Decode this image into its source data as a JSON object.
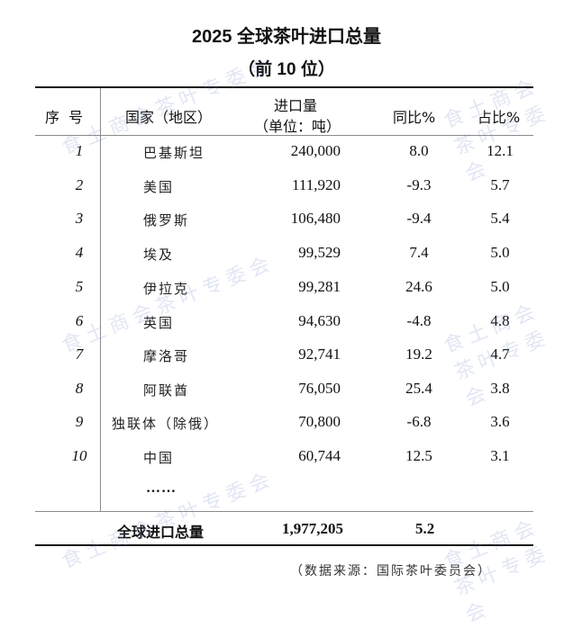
{
  "title": "2025 全球茶叶进口总量",
  "subtitle": "（前 10 位）",
  "table": {
    "headers": {
      "rank": "序  号",
      "country": "国家（地区）",
      "volume_line1": "进口量",
      "volume_line2": "（单位：吨）",
      "yoy": "同比%",
      "share": "占比%"
    },
    "rows": [
      {
        "rank": "1",
        "country": "巴基斯坦",
        "volume": "240,000",
        "yoy": "8.0",
        "share": "12.1"
      },
      {
        "rank": "2",
        "country": "美国",
        "volume": "111,920",
        "yoy": "-9.3",
        "share": "5.7"
      },
      {
        "rank": "3",
        "country": "俄罗斯",
        "volume": "106,480",
        "yoy": "-9.4",
        "share": "5.4"
      },
      {
        "rank": "4",
        "country": "埃及",
        "volume": "99,529",
        "yoy": "7.4",
        "share": "5.0"
      },
      {
        "rank": "5",
        "country": "伊拉克",
        "volume": "99,281",
        "yoy": "24.6",
        "share": "5.0"
      },
      {
        "rank": "6",
        "country": "英国",
        "volume": "94,630",
        "yoy": "-4.8",
        "share": "4.8"
      },
      {
        "rank": "7",
        "country": "摩洛哥",
        "volume": "92,741",
        "yoy": "19.2",
        "share": "4.7"
      },
      {
        "rank": "8",
        "country": "阿联酋",
        "volume": "76,050",
        "yoy": "25.4",
        "share": "3.8"
      },
      {
        "rank": "9",
        "country": "独联体（除俄）",
        "volume": "70,800",
        "yoy": "-6.8",
        "share": "3.6"
      },
      {
        "rank": "10",
        "country": "中国",
        "volume": "60,744",
        "yoy": "12.5",
        "share": "3.1"
      }
    ],
    "ellipsis": "……",
    "total": {
      "label": "全球进口总量",
      "volume": "1,977,205",
      "yoy": "5.2"
    }
  },
  "source": "（数据来源：国际茶叶委员会）",
  "watermark": "食土商会茶叶专委会"
}
